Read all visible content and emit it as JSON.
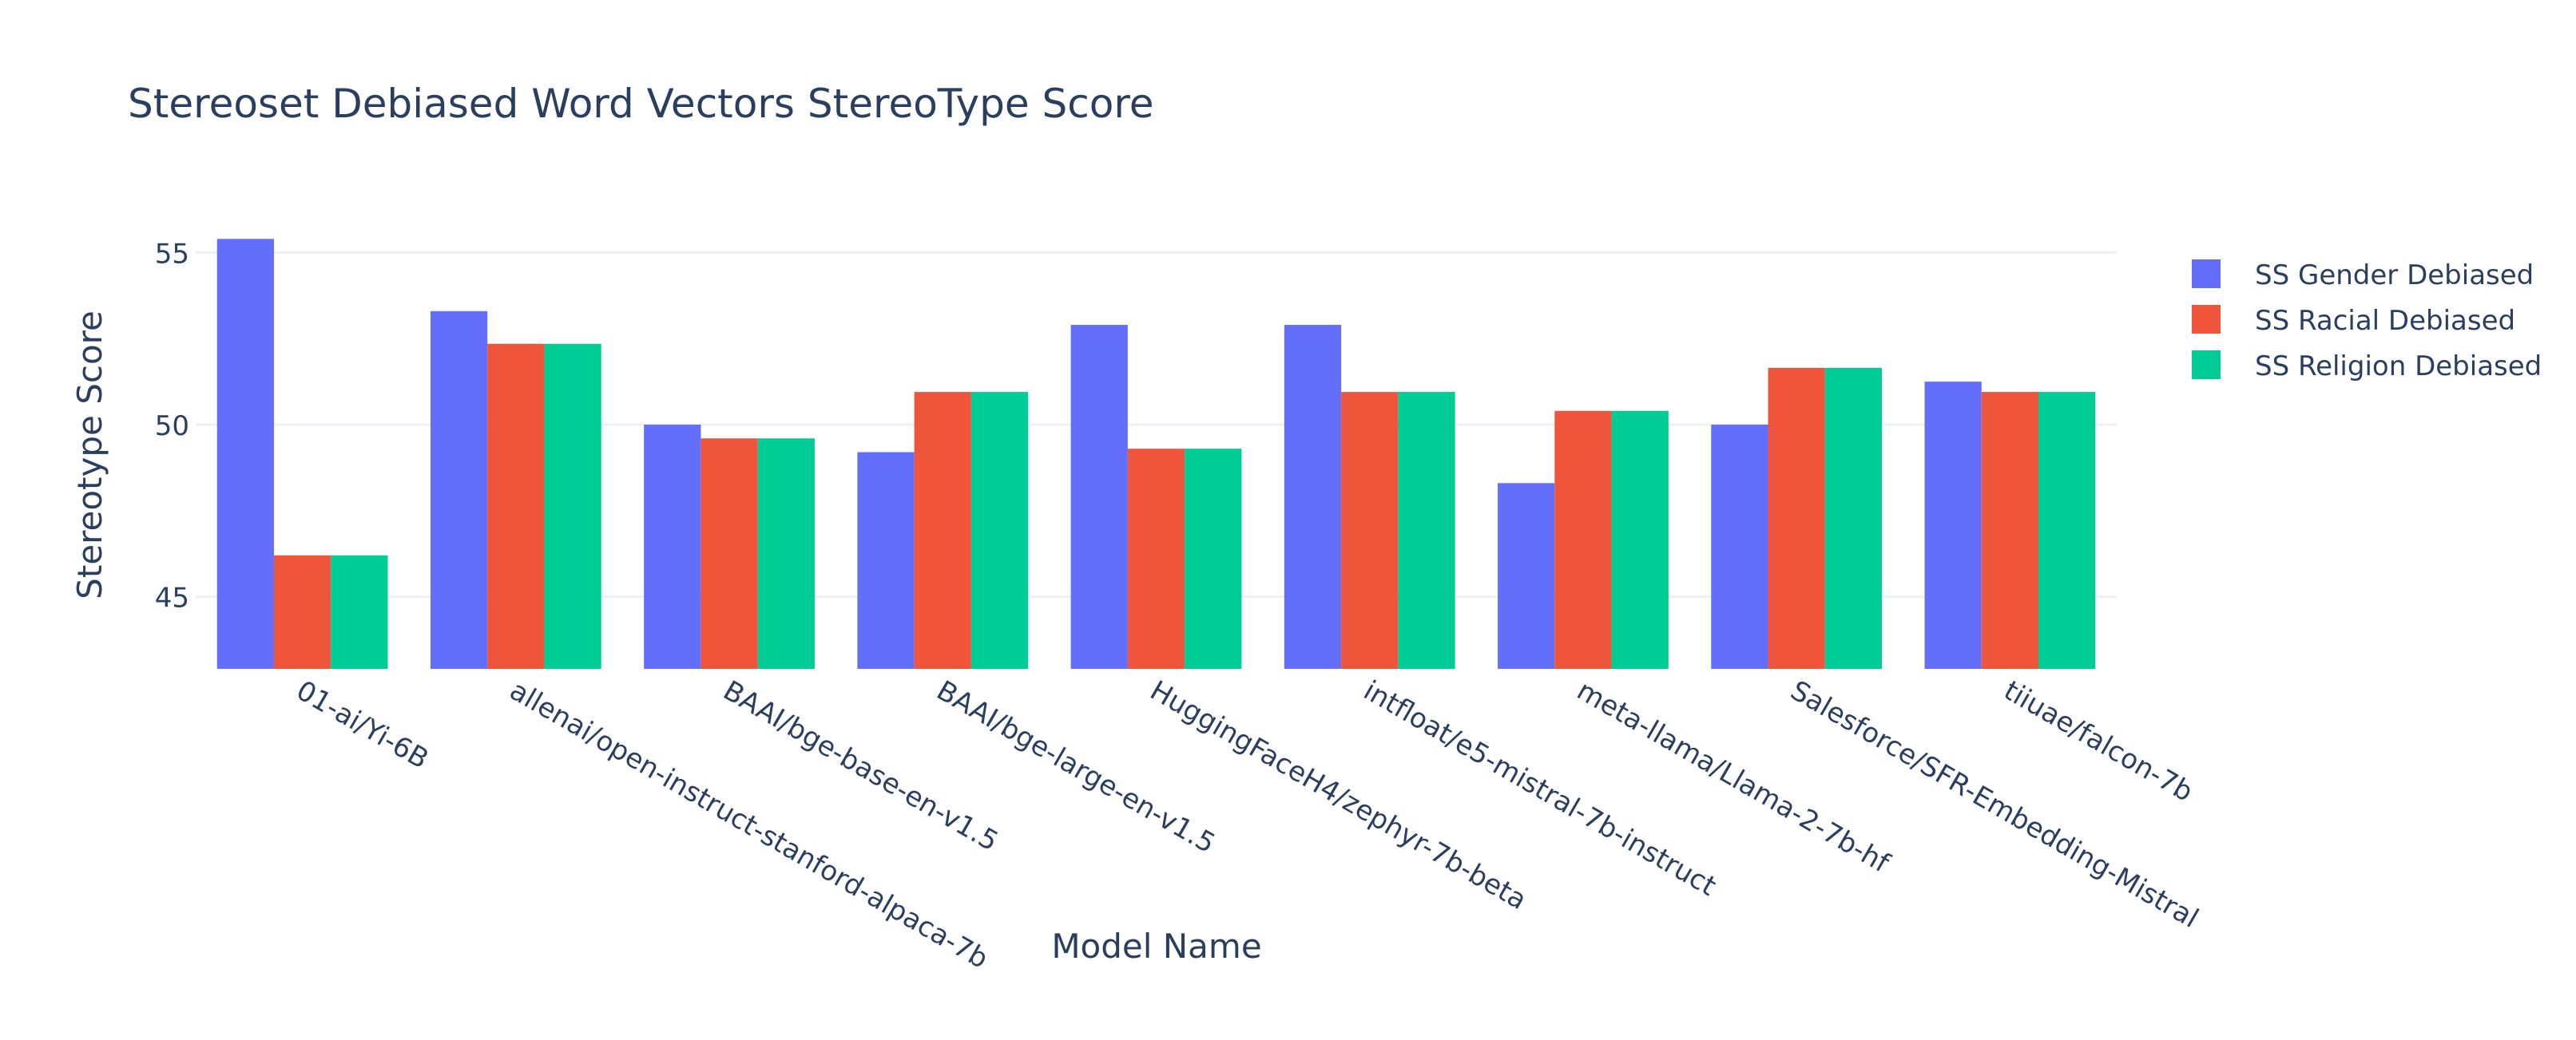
{
  "chart_data": {
    "type": "bar",
    "barmode": "group",
    "title": "Stereoset Debiased Word Vectors StereoType Score",
    "xlabel": "Model Name",
    "ylabel": "Stereotype Score",
    "ylim": [
      42.9,
      55.5
    ],
    "yticks": [
      45,
      50,
      55
    ],
    "grid": true,
    "legend_position": "top-right",
    "categories": [
      "01-ai/Yi-6B",
      "allenai/open-instruct-stanford-alpaca-7b",
      "BAAI/bge-base-en-v1.5",
      "BAAI/bge-large-en-v1.5",
      "HuggingFaceH4/zephyr-7b-beta",
      "intfloat/e5-mistral-7b-instruct",
      "meta-llama/Llama-2-7b-hf",
      "Salesforce/SFR-Embedding-Mistral",
      "tiiuae/falcon-7b"
    ],
    "series": [
      {
        "name": "SS Gender Debiased",
        "color": "#636efa",
        "values": [
          55.4,
          53.3,
          50.0,
          49.2,
          52.9,
          52.9,
          48.3,
          50.0,
          51.25
        ]
      },
      {
        "name": "SS Racial Debiased",
        "color": "#ef553b",
        "values": [
          46.2,
          52.35,
          49.6,
          50.95,
          49.3,
          50.95,
          50.4,
          51.65,
          50.95
        ]
      },
      {
        "name": "SS Religion Debiased",
        "color": "#00cc96",
        "values": [
          46.2,
          52.35,
          49.6,
          50.95,
          49.3,
          50.95,
          50.4,
          51.65,
          50.95
        ]
      }
    ]
  }
}
